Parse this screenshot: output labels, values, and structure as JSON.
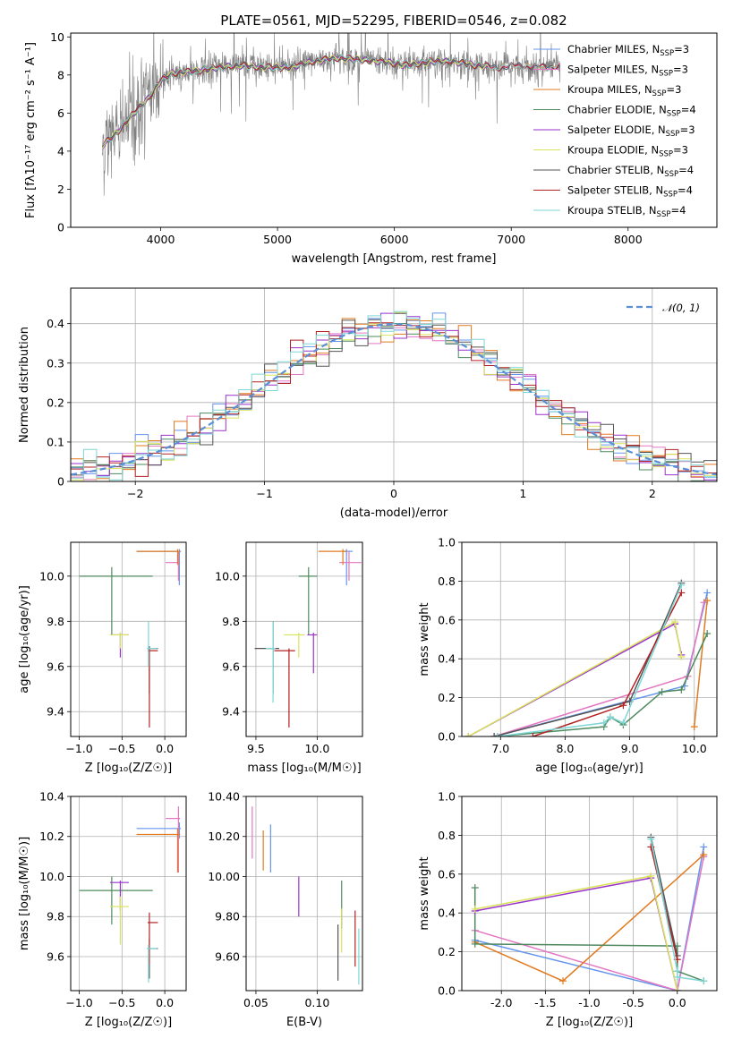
{
  "page_title": "PLATE=0561, MJD=52295, FIBERID=0546, z=0.082",
  "chart_data": [
    {
      "id": "spectrum",
      "type": "line",
      "xlabel": "wavelength [Angstrom, rest frame]",
      "ylabel": "Flux [fλ10⁻¹⁷ erg cm⁻² s⁻¹ A⁻¹]",
      "xlim": [
        3230,
        8760
      ],
      "ylim": [
        0,
        10.2
      ],
      "xticks": [
        4000,
        5000,
        6000,
        7000,
        8000
      ],
      "yticks": [
        0,
        2,
        4,
        6,
        8,
        10
      ],
      "grid": false,
      "legend_position": "right",
      "continuum": {
        "x": [
          3500,
          3600,
          3700,
          3800,
          3900,
          4000,
          4100,
          4300,
          4500,
          4700,
          4900,
          5100,
          5300,
          5500,
          5700,
          5900,
          6100,
          6300,
          6500,
          6700,
          6900,
          7100,
          7300,
          7400
        ],
        "y": [
          4.3,
          4.8,
          5.5,
          6.2,
          6.8,
          7.7,
          8.1,
          8.2,
          8.4,
          8.5,
          8.4,
          8.4,
          8.7,
          8.9,
          8.8,
          8.7,
          8.5,
          8.7,
          8.7,
          8.5,
          8.4,
          8.5,
          8.4,
          8.5
        ]
      },
      "observed_range": [
        3500,
        7420
      ],
      "series": [
        {
          "name": "Chabrier MILES, N",
          "sub": "SSP",
          "suffix": "=3",
          "color": "#6495ed",
          "x_end": 7420
        },
        {
          "name": "Salpeter MILES, N",
          "sub": "SSP",
          "suffix": "=3",
          "color": "#e377c2",
          "x_end": 7420
        },
        {
          "name": "Kroupa MILES, N",
          "sub": "SSP",
          "suffix": "=3",
          "color": "#e07b20",
          "x_end": 7420
        },
        {
          "name": "Chabrier ELODIE, N",
          "sub": "SSP",
          "suffix": "=4",
          "color": "#4f8a5f",
          "x_end": 6800
        },
        {
          "name": "Salpeter ELODIE, N",
          "sub": "SSP",
          "suffix": "=3",
          "color": "#9932cc",
          "x_end": 6800
        },
        {
          "name": "Kroupa ELODIE, N",
          "sub": "SSP",
          "suffix": "=3",
          "color": "#d9e35a",
          "x_end": 6800
        },
        {
          "name": "Chabrier STELIB, N",
          "sub": "SSP",
          "suffix": "=4",
          "color": "#555555",
          "x_end": 7420
        },
        {
          "name": "Salpeter STELIB, N",
          "sub": "SSP",
          "suffix": "=4",
          "color": "#b22222",
          "x_end": 7420
        },
        {
          "name": "Kroupa STELIB, N",
          "sub": "SSP",
          "suffix": "=4",
          "color": "#7fd6d6",
          "x_end": 7420
        }
      ]
    },
    {
      "id": "residuals",
      "type": "histogram",
      "xlabel": "(data-model)/error",
      "ylabel": "Normed distribution",
      "xlim": [
        -2.5,
        2.5
      ],
      "ylim": [
        0,
        0.49
      ],
      "xticks": [
        -2,
        -1,
        0,
        1,
        2
      ],
      "yticks": [
        0.0,
        0.1,
        0.2,
        0.3,
        0.4
      ],
      "grid": true,
      "legend_position": "top-right",
      "legend_label": "𝒩(0, 1)",
      "normal_curve_color": "#5b8fd6",
      "bin_width": 0.1
    },
    {
      "id": "age_vs_Z",
      "type": "errorbar",
      "xlabel": "Z [log₁₀(Z/Z☉)]",
      "ylabel": "age  [log₁₀(age/yr)]",
      "xlim": [
        -1.1,
        0.25
      ],
      "ylim": [
        9.29,
        10.15
      ],
      "xticks": [
        -1.0,
        -0.5,
        0.0
      ],
      "yticks": [
        9.4,
        9.6,
        9.8,
        10.0
      ],
      "grid": true,
      "points": [
        {
          "color": "#6495ed",
          "x": 0.17,
          "xerr": [
            0.5,
            0.02
          ],
          "y": 10.11,
          "yerr": [
            0.15,
            0.01
          ]
        },
        {
          "color": "#e377c2",
          "x": 0.16,
          "xerr": [
            0.15,
            0.02
          ],
          "y": 10.06,
          "yerr": [
            0.08,
            0.05
          ]
        },
        {
          "color": "#e07b20",
          "x": 0.15,
          "xerr": [
            0.48,
            0.03
          ],
          "y": 10.11,
          "yerr": [
            0.06,
            0.01
          ]
        },
        {
          "color": "#4f8a5f",
          "x": -0.62,
          "xerr": [
            0.38,
            0.48
          ],
          "y": 10.0,
          "yerr": [
            0.26,
            0.04
          ]
        },
        {
          "color": "#9932cc",
          "x": -0.52,
          "xerr": [
            0.12,
            0.1
          ],
          "y": 9.74,
          "yerr": [
            0.1,
            0.01
          ]
        },
        {
          "color": "#d9e35a",
          "x": -0.52,
          "xerr": [
            0.12,
            0.1
          ],
          "y": 9.74,
          "yerr": [
            0.06,
            0.01
          ]
        },
        {
          "color": "#555555",
          "x": -0.18,
          "xerr": [
            0.02,
            0.1
          ],
          "y": 9.68,
          "yerr": [
            0.2,
            0.01
          ]
        },
        {
          "color": "#b22222",
          "x": -0.18,
          "xerr": [
            0.02,
            0.1
          ],
          "y": 9.67,
          "yerr": [
            0.34,
            0.01
          ]
        },
        {
          "color": "#7fd6d6",
          "x": -0.19,
          "xerr": [
            0.02,
            0.1
          ],
          "y": 9.68,
          "yerr": [
            0.08,
            0.12
          ]
        }
      ]
    },
    {
      "id": "age_vs_mass",
      "type": "errorbar",
      "xlabel": "mass [log₁₀(M/M☉)]",
      "ylabel": "",
      "xlim": [
        9.42,
        10.37
      ],
      "ylim": [
        9.29,
        10.15
      ],
      "xticks": [
        9.5,
        10.0
      ],
      "yticks": [
        9.4,
        9.6,
        9.8,
        10.0
      ],
      "grid": true,
      "points": [
        {
          "color": "#6495ed",
          "x": 10.24,
          "xerr": [
            0.02,
            0.05
          ],
          "y": 10.11,
          "yerr": [
            0.15,
            0.01
          ]
        },
        {
          "color": "#e377c2",
          "x": 10.26,
          "xerr": [
            0.08,
            0.1
          ],
          "y": 10.06,
          "yerr": [
            0.08,
            0.05
          ]
        },
        {
          "color": "#e07b20",
          "x": 10.21,
          "xerr": [
            0.2,
            0.03
          ],
          "y": 10.11,
          "yerr": [
            0.06,
            0.01
          ]
        },
        {
          "color": "#4f8a5f",
          "x": 9.93,
          "xerr": [
            0.08,
            0.07
          ],
          "y": 10.0,
          "yerr": [
            0.26,
            0.04
          ]
        },
        {
          "color": "#9932cc",
          "x": 9.97,
          "xerr": [
            0.05,
            0.03
          ],
          "y": 9.74,
          "yerr": [
            0.17,
            0.01
          ]
        },
        {
          "color": "#d9e35a",
          "x": 9.85,
          "xerr": [
            0.12,
            0.05
          ],
          "y": 9.74,
          "yerr": [
            0.1,
            0.01
          ]
        },
        {
          "color": "#555555",
          "x": 9.64,
          "xerr": [
            0.15,
            0.05
          ],
          "y": 9.68,
          "yerr": [
            0.2,
            0.12
          ]
        },
        {
          "color": "#b22222",
          "x": 9.77,
          "xerr": [
            0.12,
            0.05
          ],
          "y": 9.67,
          "yerr": [
            0.34,
            0.01
          ]
        },
        {
          "color": "#7fd6d6",
          "x": 9.64,
          "xerr": [
            0.06,
            0.02
          ],
          "y": 9.68,
          "yerr": [
            0.24,
            0.12
          ]
        }
      ]
    },
    {
      "id": "mass_weight_vs_age",
      "type": "line",
      "xlabel": "age  [log₁₀(age/yr)]",
      "ylabel": "mass weight",
      "xlim": [
        6.4,
        10.35
      ],
      "ylim": [
        0,
        1.0
      ],
      "xticks": [
        7,
        8,
        9,
        10
      ],
      "yticks": [
        0.0,
        0.2,
        0.4,
        0.6,
        0.8,
        1.0
      ],
      "grid": true,
      "series": [
        {
          "color": "#6495ed",
          "x": [
            6.9,
            9.85,
            10.2
          ],
          "y": [
            0.0,
            0.26,
            0.74
          ]
        },
        {
          "color": "#e377c2",
          "x": [
            6.9,
            9.9,
            10.15
          ],
          "y": [
            0.0,
            0.31,
            0.69
          ]
        },
        {
          "color": "#e07b20",
          "x": [
            10.0,
            10.2
          ],
          "y": [
            0.05,
            0.7
          ]
        },
        {
          "color": "#4f8a5f",
          "x": [
            6.95,
            8.6,
            8.7,
            8.9,
            9.5,
            9.8,
            10.2
          ],
          "y": [
            0.0,
            0.05,
            0.1,
            0.06,
            0.23,
            0.24,
            0.53
          ]
        },
        {
          "color": "#9932cc",
          "x": [
            6.5,
            9.7,
            9.8
          ],
          "y": [
            0.0,
            0.58,
            0.42
          ]
        },
        {
          "color": "#d9e35a",
          "x": [
            6.5,
            9.7,
            9.8
          ],
          "y": [
            0.0,
            0.59,
            0.41
          ]
        },
        {
          "color": "#555555",
          "x": [
            6.9,
            9.0,
            9.8
          ],
          "y": [
            0.0,
            0.18,
            0.79
          ]
        },
        {
          "color": "#b22222",
          "x": [
            7.5,
            8.9,
            9.8
          ],
          "y": [
            0.0,
            0.16,
            0.74
          ]
        },
        {
          "color": "#7fd6d6",
          "x": [
            6.95,
            8.6,
            8.7,
            8.9,
            9.8
          ],
          "y": [
            0.0,
            0.07,
            0.1,
            0.07,
            0.78
          ]
        }
      ]
    },
    {
      "id": "mass_vs_Z",
      "type": "errorbar",
      "xlabel": "Z [log₁₀(Z/Z☉)]",
      "ylabel": "mass [log₁₀(M/M☉)]",
      "xlim": [
        -1.1,
        0.25
      ],
      "ylim": [
        9.43,
        10.4
      ],
      "xticks": [
        -1.0,
        -0.5,
        0.0
      ],
      "yticks": [
        9.6,
        9.8,
        10.0,
        10.2,
        10.4
      ],
      "grid": true,
      "points": [
        {
          "color": "#6495ed",
          "x": 0.17,
          "xerr": [
            0.5,
            0.02
          ],
          "y": 10.24,
          "yerr": [
            0.05,
            0.03
          ]
        },
        {
          "color": "#e377c2",
          "x": 0.16,
          "xerr": [
            0.15,
            0.02
          ],
          "y": 10.29,
          "yerr": [
            0.27,
            0.06
          ]
        },
        {
          "color": "#e07b20",
          "x": 0.15,
          "xerr": [
            0.48,
            0.03
          ],
          "y": 10.21,
          "yerr": [
            0.19,
            0.03
          ]
        },
        {
          "color": "#4f8a5f",
          "x": -0.62,
          "xerr": [
            0.38,
            0.48
          ],
          "y": 9.93,
          "yerr": [
            0.17,
            0.07
          ]
        },
        {
          "color": "#9932cc",
          "x": -0.52,
          "xerr": [
            0.12,
            0.1
          ],
          "y": 9.97,
          "yerr": [
            0.14,
            0.01
          ]
        },
        {
          "color": "#d9e35a",
          "x": -0.52,
          "xerr": [
            0.12,
            0.1
          ],
          "y": 9.85,
          "yerr": [
            0.19,
            0.05
          ]
        },
        {
          "color": "#555555",
          "x": -0.18,
          "xerr": [
            0.02,
            0.1
          ],
          "y": 9.64,
          "yerr": [
            0.15,
            0.05
          ]
        },
        {
          "color": "#b22222",
          "x": -0.18,
          "xerr": [
            0.02,
            0.1
          ],
          "y": 9.77,
          "yerr": [
            0.21,
            0.05
          ]
        },
        {
          "color": "#7fd6d6",
          "x": -0.19,
          "xerr": [
            0.02,
            0.1
          ],
          "y": 9.64,
          "yerr": [
            0.17,
            0.02
          ]
        }
      ]
    },
    {
      "id": "mass_vs_EBV",
      "type": "errorbar",
      "xlabel": "E(B-V)",
      "ylabel": "",
      "xlim": [
        0.042,
        0.137
      ],
      "ylim": [
        9.43,
        10.4
      ],
      "xticks": [
        0.05,
        0.1
      ],
      "yticks": [
        9.6,
        9.8,
        10.0,
        10.2,
        10.4
      ],
      "grid": true,
      "points": [
        {
          "color": "#e377c2",
          "x": 0.047,
          "y": 10.22,
          "yerr": [
            0.13,
            0.13
          ]
        },
        {
          "color": "#e07b20",
          "x": 0.056,
          "y": 10.13,
          "yerr": [
            0.1,
            0.1
          ]
        },
        {
          "color": "#6495ed",
          "x": 0.062,
          "y": 10.14,
          "yerr": [
            0.12,
            0.12
          ]
        },
        {
          "color": "#9932cc",
          "x": 0.085,
          "y": 9.9,
          "yerr": [
            0.1,
            0.1
          ]
        },
        {
          "color": "#555555",
          "x": 0.117,
          "y": 9.62,
          "yerr": [
            0.14,
            0.14
          ]
        },
        {
          "color": "#4f8a5f",
          "x": 0.12,
          "y": 9.86,
          "yerr": [
            0.12,
            0.12
          ]
        },
        {
          "color": "#d9e35a",
          "x": 0.12,
          "y": 9.73,
          "yerr": [
            0.11,
            0.11
          ]
        },
        {
          "color": "#b22222",
          "x": 0.131,
          "y": 9.69,
          "yerr": [
            0.14,
            0.14
          ]
        },
        {
          "color": "#7fd6d6",
          "x": 0.134,
          "y": 9.6,
          "yerr": [
            0.14,
            0.14
          ]
        }
      ]
    },
    {
      "id": "mass_weight_vs_Z",
      "type": "line",
      "xlabel": "Z [log₁₀(Z/Z☉)]",
      "ylabel": "mass weight",
      "xlim": [
        -2.45,
        0.45
      ],
      "ylim": [
        0,
        1.0
      ],
      "xticks": [
        -2.0,
        -1.5,
        -1.0,
        -0.5,
        0.0
      ],
      "yticks": [
        0.0,
        0.2,
        0.4,
        0.6,
        0.8,
        1.0
      ],
      "grid": true,
      "series": [
        {
          "color": "#6495ed",
          "x": [
            -2.3,
            0.0,
            0.3
          ],
          "y": [
            0.26,
            0.0,
            0.74
          ]
        },
        {
          "color": "#e377c2",
          "x": [
            -2.3,
            0.0,
            0.3
          ],
          "y": [
            0.31,
            0.0,
            0.69
          ]
        },
        {
          "color": "#e07b20",
          "x": [
            -2.3,
            -1.3,
            0.3
          ],
          "y": [
            0.25,
            0.05,
            0.7
          ]
        },
        {
          "color": "#4f8a5f",
          "x": [
            -2.3,
            -2.3,
            0.0,
            0.0,
            0.3
          ],
          "y": [
            0.53,
            0.24,
            0.23,
            0.1,
            0.05
          ]
        },
        {
          "color": "#9932cc",
          "x": [
            -2.3,
            -0.3,
            0.0
          ],
          "y": [
            0.41,
            0.58,
            0.0
          ]
        },
        {
          "color": "#d9e35a",
          "x": [
            -2.3,
            -0.3,
            0.0
          ],
          "y": [
            0.42,
            0.59,
            0.0
          ]
        },
        {
          "color": "#555555",
          "x": [
            -0.3,
            0.0
          ],
          "y": [
            0.79,
            0.18
          ]
        },
        {
          "color": "#b22222",
          "x": [
            -0.3,
            0.0
          ],
          "y": [
            0.74,
            0.16
          ]
        },
        {
          "color": "#7fd6d6",
          "x": [
            -0.3,
            0.0,
            0.0,
            0.3
          ],
          "y": [
            0.78,
            0.1,
            0.07,
            0.05
          ]
        }
      ]
    }
  ]
}
